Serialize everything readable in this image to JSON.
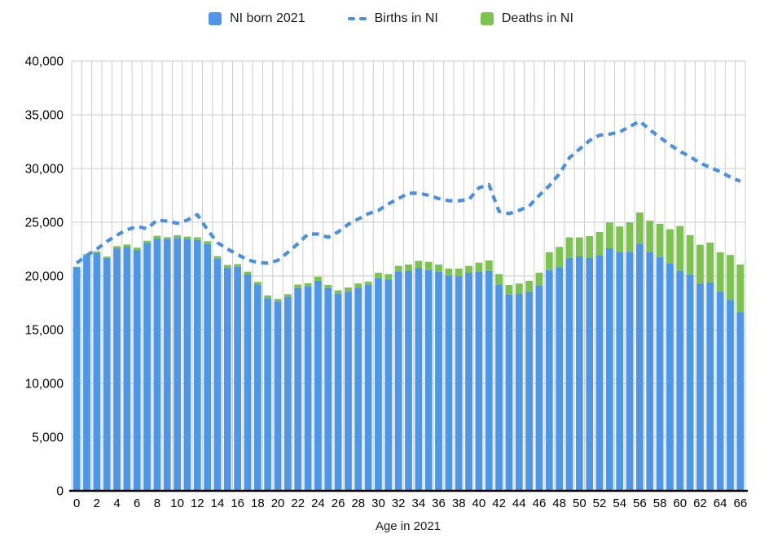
{
  "legend": {
    "items": [
      {
        "label": "NI born 2021",
        "swatch": "square",
        "color": "#4D96E8"
      },
      {
        "label": "Births in NI",
        "swatch": "dash",
        "color": "#4A90E2"
      },
      {
        "label": "Deaths in NI",
        "swatch": "square",
        "color": "#7CC350"
      }
    ]
  },
  "chart_data": {
    "type": "bar+line",
    "title": "",
    "xlabel": "Age in 2021",
    "ylabel": "",
    "ylim": [
      0,
      40000
    ],
    "ytick_step": 5000,
    "ytick_labels": [
      "0",
      "5,000",
      "10,000",
      "15,000",
      "20,000",
      "25,000",
      "30,000",
      "35,000",
      "40,000"
    ],
    "xtick_step": 2,
    "grid": true,
    "legend_position": "top",
    "x": [
      0,
      1,
      2,
      3,
      4,
      5,
      6,
      7,
      8,
      9,
      10,
      11,
      12,
      13,
      14,
      15,
      16,
      17,
      18,
      19,
      20,
      21,
      22,
      23,
      24,
      25,
      26,
      27,
      28,
      29,
      30,
      31,
      32,
      33,
      34,
      35,
      36,
      37,
      38,
      39,
      40,
      41,
      42,
      43,
      44,
      45,
      46,
      47,
      48,
      49,
      50,
      51,
      52,
      53,
      54,
      55,
      56,
      57,
      58,
      59,
      60,
      61,
      62,
      63,
      64,
      65,
      66
    ],
    "series": [
      {
        "name": "NI born 2021",
        "type": "bar",
        "stack_order": 0,
        "color": "#4D96E8",
        "values": [
          20800,
          21900,
          22150,
          21680,
          22570,
          22730,
          22420,
          23080,
          23480,
          23410,
          23540,
          23440,
          23350,
          22980,
          21590,
          20780,
          20850,
          20150,
          19200,
          17930,
          17630,
          18060,
          18890,
          19020,
          19550,
          18870,
          18360,
          18540,
          18920,
          19170,
          19800,
          19670,
          20430,
          20480,
          20750,
          20550,
          20380,
          20050,
          19980,
          20300,
          20430,
          20480,
          19220,
          18280,
          18360,
          18530,
          19120,
          20550,
          20800,
          21690,
          21820,
          21690,
          21950,
          22580,
          22200,
          22250,
          22960,
          22200,
          21750,
          21190,
          20480,
          20130,
          19300,
          19400,
          18540,
          17780,
          16650
        ]
      },
      {
        "name": "Deaths in NI",
        "type": "bar",
        "stack_order": 1,
        "color": "#7CC350",
        "values": [
          60,
          120,
          140,
          120,
          200,
          200,
          210,
          200,
          260,
          200,
          250,
          220,
          250,
          250,
          250,
          240,
          250,
          250,
          250,
          250,
          230,
          250,
          310,
          300,
          380,
          300,
          300,
          380,
          380,
          300,
          500,
          500,
          510,
          580,
          650,
          760,
          680,
          630,
          700,
          630,
          810,
          960,
          950,
          890,
          930,
          1020,
          1180,
          1650,
          1900,
          1900,
          1770,
          2020,
          2140,
          2400,
          2400,
          2730,
          2940,
          2940,
          3100,
          3160,
          4170,
          3660,
          3600,
          3700,
          3660,
          4170,
          4410
        ]
      },
      {
        "name": "Births in NI",
        "type": "line",
        "style": "dashed",
        "color": "#4A90E2",
        "values": [
          21200,
          21900,
          22500,
          23200,
          23800,
          24300,
          24600,
          24400,
          25200,
          25100,
          24900,
          25200,
          25700,
          24300,
          23100,
          22500,
          22000,
          21500,
          21250,
          21200,
          21450,
          22200,
          23000,
          23900,
          23900,
          23600,
          24100,
          24800,
          25300,
          25800,
          26100,
          26700,
          27200,
          27700,
          27700,
          27500,
          27200,
          27000,
          27000,
          27100,
          28200,
          28500,
          26000,
          25800,
          26100,
          26500,
          27500,
          28400,
          29500,
          31000,
          31800,
          32600,
          33100,
          33200,
          33400,
          33900,
          34400,
          33600,
          32900,
          32200,
          31600,
          31100,
          30500,
          30100,
          29700,
          29200,
          28800
        ]
      }
    ]
  }
}
